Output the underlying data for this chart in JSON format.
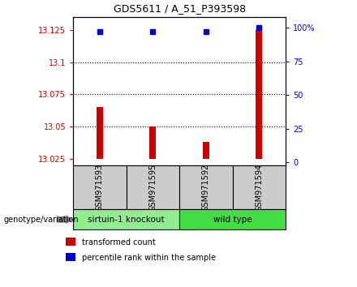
{
  "title": "GDS5611 / A_51_P393598",
  "samples": [
    "GSM971593",
    "GSM971595",
    "GSM971592",
    "GSM971594"
  ],
  "bar_values": [
    13.065,
    13.05,
    13.038,
    13.125
  ],
  "percentile_values": [
    97,
    97,
    97,
    100
  ],
  "bar_color": "#cc0000",
  "dot_color": "#0000cc",
  "ylim_left": [
    13.02,
    13.135
  ],
  "ylim_right": [
    -2,
    108
  ],
  "yticks_left": [
    13.025,
    13.05,
    13.075,
    13.1,
    13.125
  ],
  "ytick_labels_left": [
    "13.025",
    "13.05",
    "13.075",
    "13.1",
    "13.125"
  ],
  "yticks_right": [
    0,
    25,
    50,
    75,
    100
  ],
  "ytick_labels_right": [
    "0",
    "25",
    "50",
    "75",
    "100%"
  ],
  "hlines": [
    13.1,
    13.075,
    13.05
  ],
  "groups": [
    {
      "label": "sirtuin-1 knockout",
      "indices": [
        0,
        1
      ],
      "color": "#90ee90"
    },
    {
      "label": "wild type",
      "indices": [
        2,
        3
      ],
      "color": "#44dd44"
    }
  ],
  "genotype_label": "genotype/variation",
  "legend_items": [
    {
      "color": "#cc0000",
      "label": "transformed count"
    },
    {
      "color": "#0000cc",
      "label": "percentile rank within the sample"
    }
  ],
  "bar_bottom": 13.025,
  "sample_bg": "#cccccc",
  "bar_width": 0.12
}
